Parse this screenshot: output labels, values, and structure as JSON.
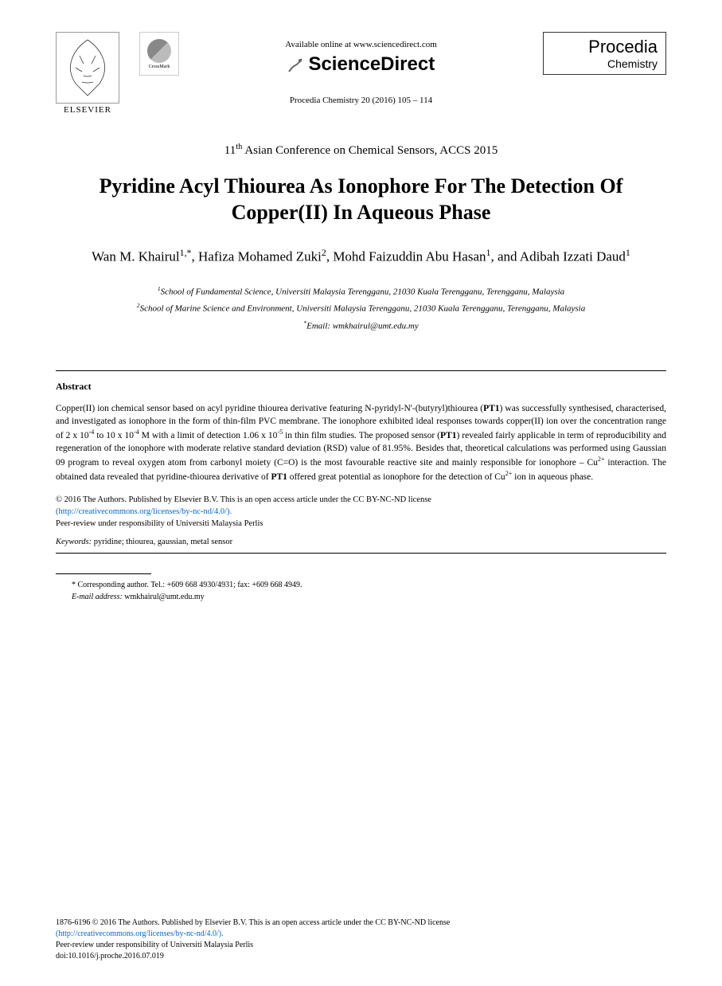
{
  "header": {
    "elsevier_label": "ELSEVIER",
    "crossmark_label": "CrossMark",
    "available_online": "Available online at www.sciencedirect.com",
    "sciencedirect": "ScienceDirect",
    "journal_reference": "Procedia Chemistry 20 (2016) 105 – 114",
    "procedia_title": "Procedia",
    "procedia_subtitle": "Chemistry"
  },
  "conference": "11th Asian Conference on Chemical Sensors, ACCS 2015",
  "title": "Pyridine Acyl Thiourea As Ionophore For The Detection Of Copper(II) In Aqueous Phase",
  "authors_html": "Wan M. Khairul<sup>1,*</sup>, Hafiza Mohamed Zuki<sup>2</sup>, Mohd Faizuddin Abu Hasan<sup>1</sup>, and Adibah Izzati Daud<sup>1</sup>",
  "affiliations": {
    "aff1": "1School of Fundamental Science, Universiti Malaysia Terengganu, 21030 Kuala Terengganu, Terengganu, Malaysia",
    "aff2": "2School of Marine Science and Environment, Universiti Malaysia Terengganu, 21030 Kuala Terengganu, Terengganu, Malaysia",
    "email": "*Email: wmkhairul@umt.edu.my"
  },
  "abstract": {
    "heading": "Abstract",
    "text_html": "Copper(II) ion chemical sensor based on acyl pyridine thiourea derivative featuring N-pyridyl-N'-(butyryl)thiourea (<b>PT1</b>) was successfully synthesised, characterised, and investigated as ionophore in the form of thin-film PVC membrane. The ionophore exhibited ideal responses towards copper(II) ion over the concentration range of 2 x 10<sup>-4</sup> to 10 x 10<sup>-4</sup> M with a limit of detection 1.06 x 10<sup>-5</sup> in thin film studies. The proposed sensor (<b>PT1</b>) revealed fairly applicable in term of reproducibility and regeneration of the ionophore with moderate relative standard deviation (RSD) value of 81.95%. Besides that, theoretical calculations was performed using Gaussian 09 program to reveal oxygen atom from carbonyl moiety (C=O) is the most favourable reactive site and mainly responsible for ionophore – Cu<sup>2+</sup> interaction. The obtained data revealed that pyridine-thiourea derivative of <b>PT1</b> offered great potential as ionophore for the detection of Cu<sup>2+</sup> ion in aqueous phase."
  },
  "copyright": {
    "line1": "© 2016 The Authors. Published by Elsevier B.V. This is an open access article under the CC BY-NC-ND license",
    "license_url": "(http://creativecommons.org/licenses/by-nc-nd/4.0/).",
    "peer_review": "Peer-review under responsibility of Universiti Malaysia Perlis"
  },
  "keywords": {
    "label": "Keywords:",
    "text": " pyridine; thiourea, gaussian, metal sensor"
  },
  "corresponding": {
    "line1": "* Corresponding author. Tel.: +609 668 4930/4931; fax: +609 668 4949.",
    "line2_label": "E-mail address:",
    "line2_value": " wmkhairul@umt.edu.my"
  },
  "footer": {
    "line1": "1876-6196 © 2016 The Authors. Published by Elsevier B.V. This is an open access article under the CC BY-NC-ND license",
    "license_url": "(http://creativecommons.org/licenses/by-nc-nd/4.0/).",
    "peer_review": "Peer-review under responsibility of Universiti Malaysia Perlis",
    "doi": "doi:10.1016/j.proche.2016.07.019"
  },
  "colors": {
    "link_color": "#0066cc",
    "text_color": "#000000",
    "background": "#ffffff"
  }
}
